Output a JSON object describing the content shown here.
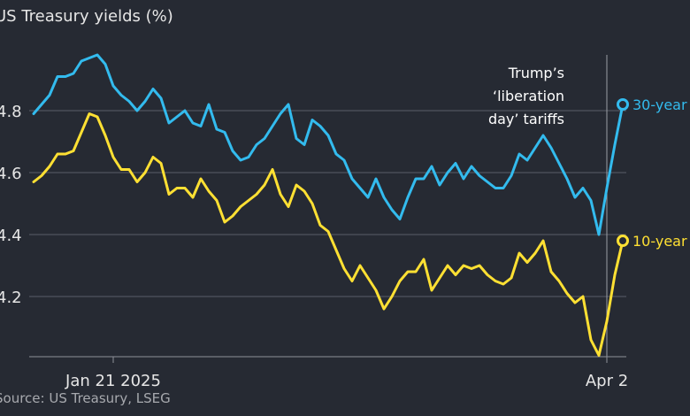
{
  "chart_data": {
    "type": "line",
    "title": "US Treasury yields (%)",
    "source": "Source: US Treasury, LSEG",
    "ylim": [
      4.0,
      5.0
    ],
    "yticks": [
      {
        "value": 4.2,
        "label": "4.2"
      },
      {
        "value": 4.4,
        "label": "4.4"
      },
      {
        "value": 4.6,
        "label": "4.6"
      },
      {
        "value": 4.8,
        "label": "4.8"
      }
    ],
    "xticks": [
      {
        "index": 10,
        "label": "Jan 21 2025"
      },
      {
        "index": 72,
        "label": "Apr 2"
      }
    ],
    "annotation": {
      "index": 72,
      "lines": [
        "Trump’s",
        "‘liberation",
        "day’ tariffs"
      ]
    },
    "series": [
      {
        "name": "30-year",
        "color": "#33bbee",
        "values": [
          4.79,
          4.82,
          4.85,
          4.91,
          4.91,
          4.92,
          4.96,
          4.97,
          4.98,
          4.95,
          4.88,
          4.85,
          4.83,
          4.8,
          4.83,
          4.87,
          4.84,
          4.76,
          4.78,
          4.8,
          4.76,
          4.75,
          4.82,
          4.74,
          4.73,
          4.67,
          4.64,
          4.65,
          4.69,
          4.71,
          4.75,
          4.79,
          4.82,
          4.71,
          4.69,
          4.77,
          4.75,
          4.72,
          4.66,
          4.64,
          4.58,
          4.55,
          4.52,
          4.58,
          4.52,
          4.48,
          4.45,
          4.52,
          4.58,
          4.58,
          4.62,
          4.56,
          4.6,
          4.63,
          4.58,
          4.62,
          4.59,
          4.57,
          4.55,
          4.55,
          4.59,
          4.66,
          4.64,
          4.68,
          4.72,
          4.68,
          4.63,
          4.58,
          4.52,
          4.55,
          4.51,
          4.4,
          4.55,
          4.69,
          4.82
        ]
      },
      {
        "name": "10-year",
        "color": "#ffe033",
        "values": [
          4.57,
          4.59,
          4.62,
          4.66,
          4.66,
          4.67,
          4.73,
          4.79,
          4.78,
          4.72,
          4.65,
          4.61,
          4.61,
          4.57,
          4.6,
          4.65,
          4.63,
          4.53,
          4.55,
          4.55,
          4.52,
          4.58,
          4.54,
          4.51,
          4.44,
          4.46,
          4.49,
          4.51,
          4.53,
          4.56,
          4.61,
          4.53,
          4.49,
          4.56,
          4.54,
          4.5,
          4.43,
          4.41,
          4.35,
          4.29,
          4.25,
          4.3,
          4.26,
          4.22,
          4.16,
          4.2,
          4.25,
          4.28,
          4.28,
          4.32,
          4.22,
          4.26,
          4.3,
          4.27,
          4.3,
          4.29,
          4.3,
          4.27,
          4.25,
          4.24,
          4.26,
          4.34,
          4.31,
          4.34,
          4.38,
          4.28,
          4.25,
          4.21,
          4.18,
          4.2,
          4.06,
          4.01,
          4.12,
          4.27,
          4.38
        ]
      }
    ]
  }
}
